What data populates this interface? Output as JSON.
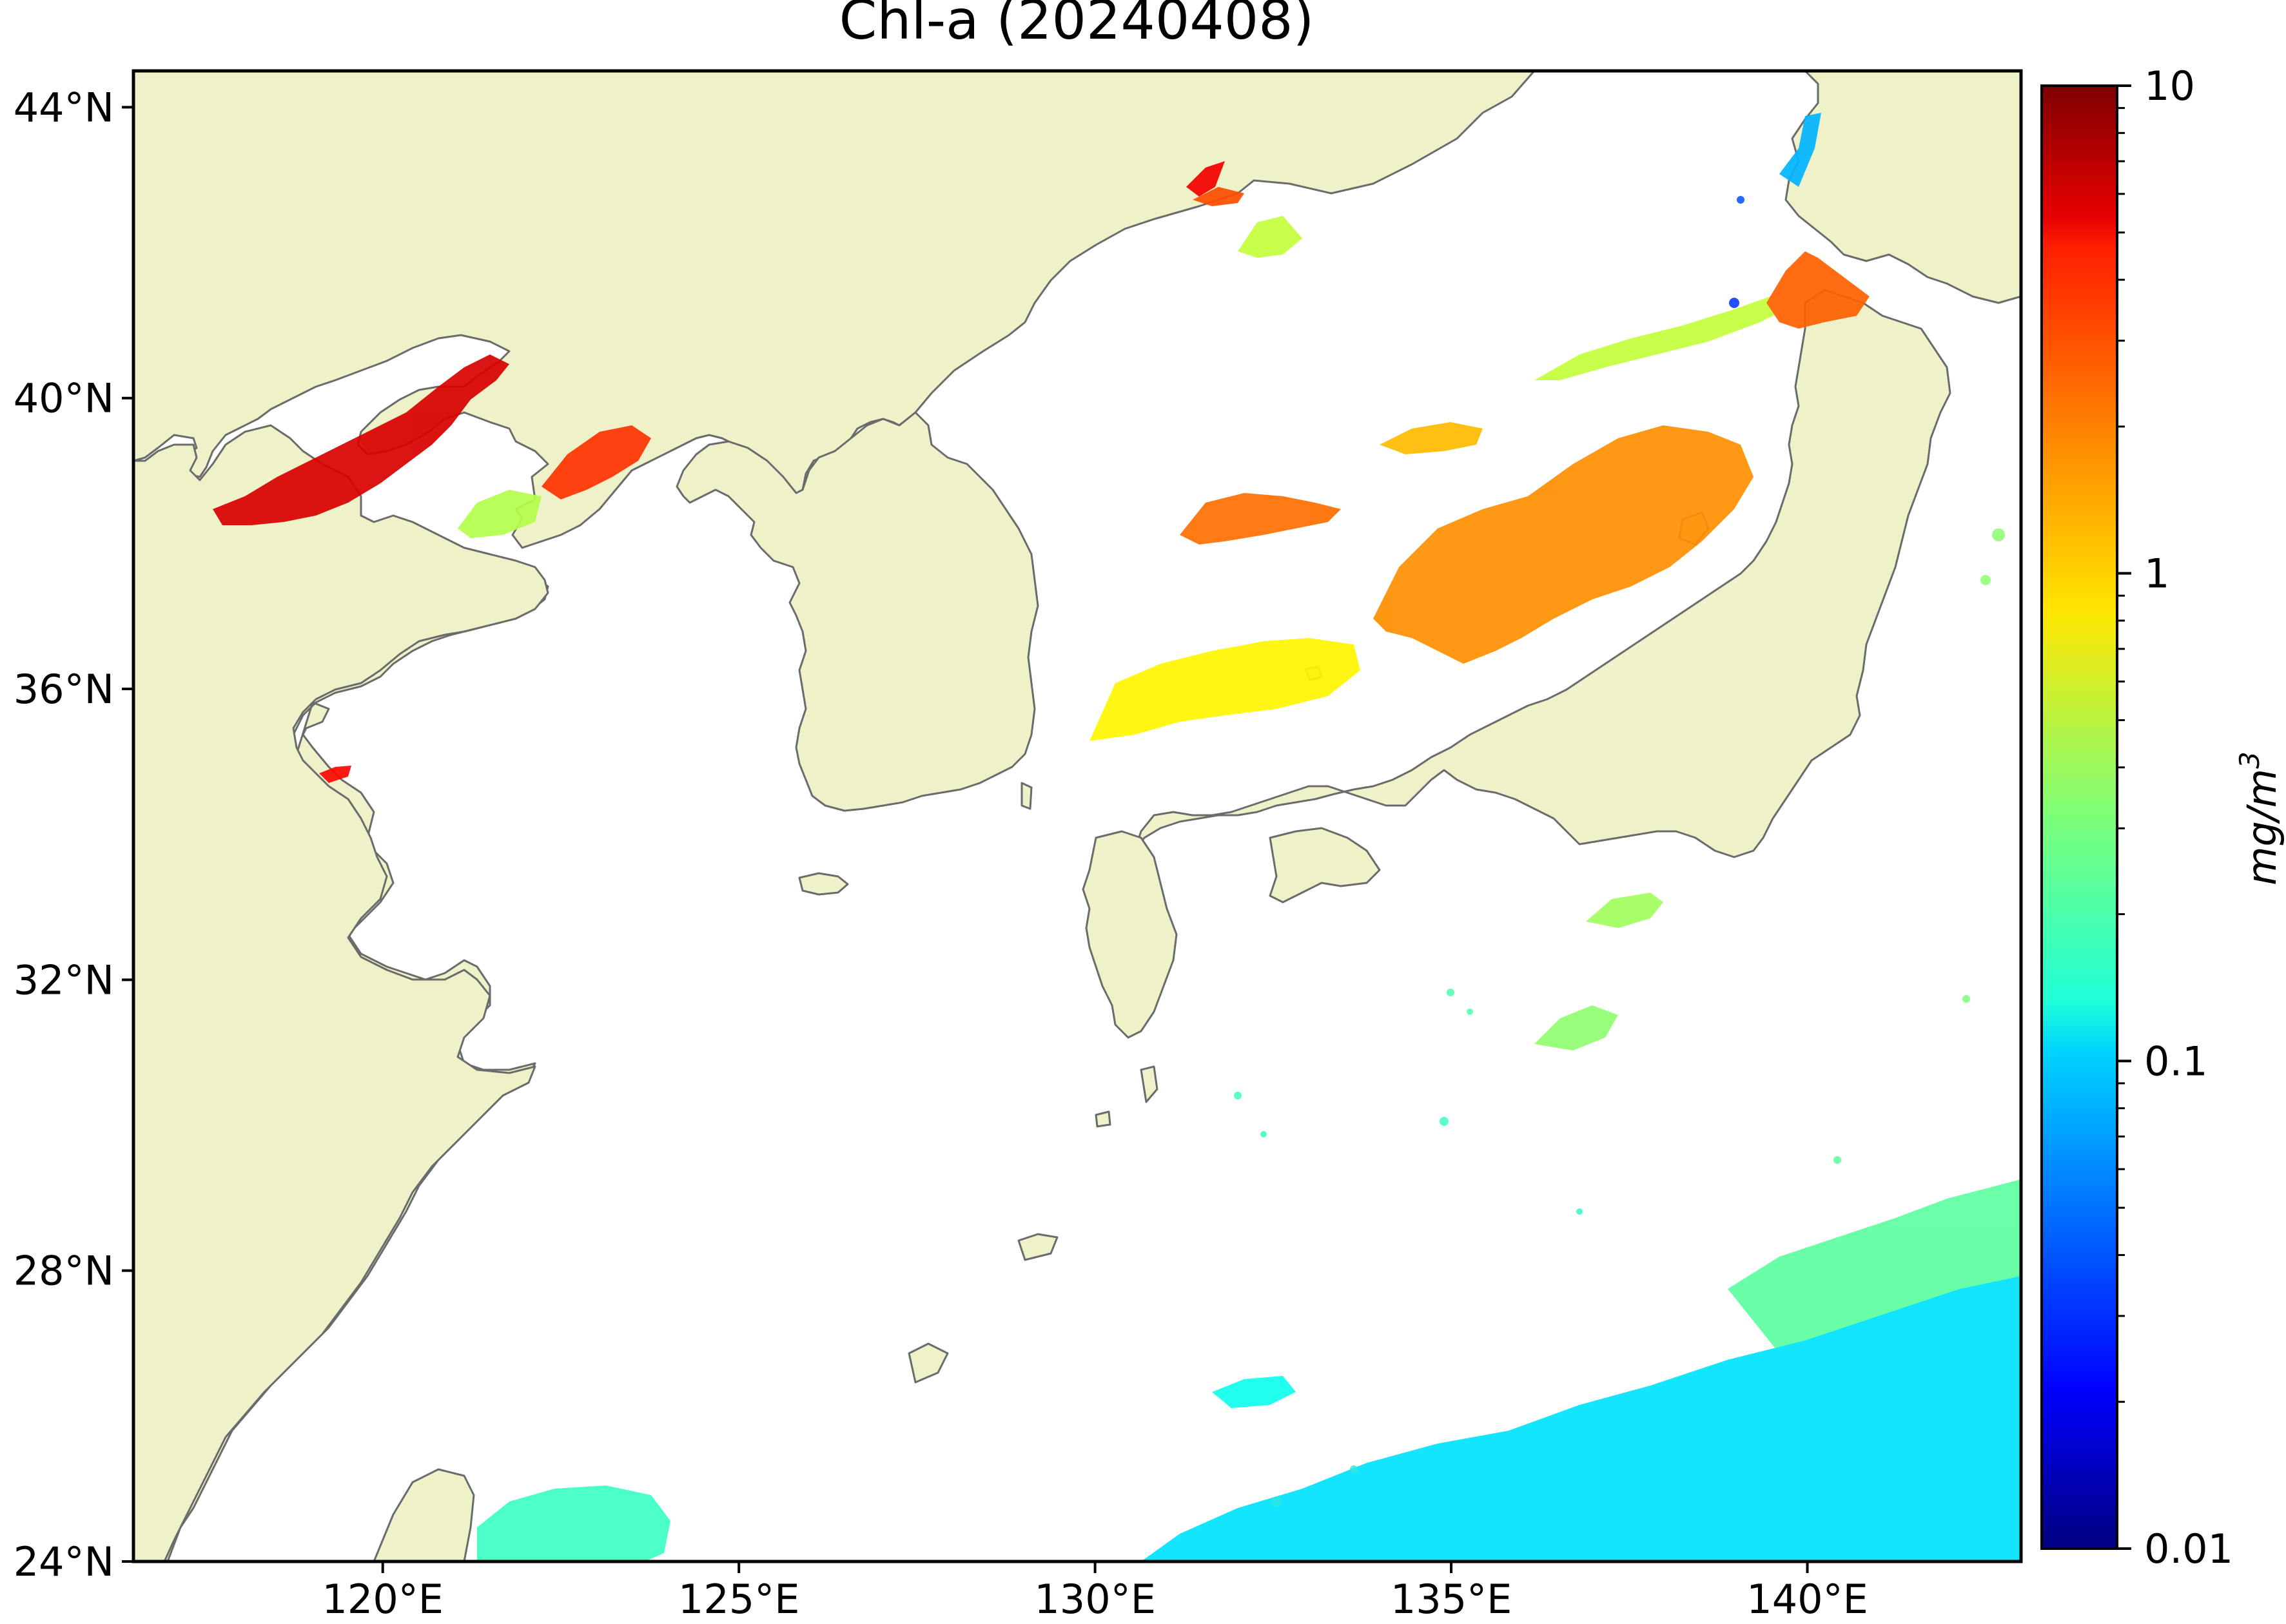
{
  "title": "Chl-a (20240408)",
  "map": {
    "lon_range": [
      116.5,
      143
    ],
    "lat_range": [
      24,
      44.5
    ],
    "land_color": "#eff2c9",
    "ocean_color": "#ffffff",
    "coastline_color": "#6b6b6b",
    "x_ticks": [
      {
        "lon": 120,
        "label": "120°E"
      },
      {
        "lon": 125,
        "label": "125°E"
      },
      {
        "lon": 130,
        "label": "130°E"
      },
      {
        "lon": 135,
        "label": "135°E"
      },
      {
        "lon": 140,
        "label": "140°E"
      }
    ],
    "y_ticks": [
      {
        "lat": 44,
        "label": "44°N"
      },
      {
        "lat": 40,
        "label": "40°N"
      },
      {
        "lat": 36,
        "label": "36°N"
      },
      {
        "lat": 32,
        "label": "32°N"
      },
      {
        "lat": 28,
        "label": "28°N"
      },
      {
        "lat": 24,
        "label": "24°N"
      }
    ]
  },
  "colorbar": {
    "label": "mg/m",
    "label_superscript": "3",
    "scale": "log",
    "range": [
      0.01,
      10
    ],
    "colormap": "jet",
    "ticks": [
      {
        "value": 10,
        "label": "10"
      },
      {
        "value": 1,
        "label": "1"
      },
      {
        "value": 0.1,
        "label": "0.1"
      },
      {
        "value": 0.01,
        "label": "0.01"
      }
    ]
  },
  "chl_patches": [
    {
      "name": "bohai-bay",
      "value": 5.5
    },
    {
      "name": "liaodong-bay-north",
      "value": 4.5
    },
    {
      "name": "korea-bay",
      "value": 3.0
    },
    {
      "name": "korea-bay-edge",
      "value": 0.45
    },
    {
      "name": "jiangsu-coast",
      "value": 4.0
    },
    {
      "name": "east-sea-north",
      "value": 0.5
    },
    {
      "name": "vladivostok-coast",
      "value": 2.5
    },
    {
      "name": "tsugaru-strait",
      "value": 2.2
    },
    {
      "name": "east-sea-northeast",
      "value": 0.5
    },
    {
      "name": "hokkaido-west",
      "value": 0.08
    },
    {
      "name": "east-sea-central",
      "value": 2.0
    },
    {
      "name": "yamato-basin",
      "value": 1.6
    },
    {
      "name": "east-sea-southwest",
      "value": 1.2
    },
    {
      "name": "east-sea-south",
      "value": 0.8
    },
    {
      "name": "japan-pacific-coast",
      "value": 0.4
    },
    {
      "name": "east-of-honshu",
      "value": 0.35
    },
    {
      "name": "philippine-sea-north",
      "value": 0.25
    },
    {
      "name": "philippine-sea-south",
      "value": 0.11
    },
    {
      "name": "taiwan-strait",
      "value": 0.2
    },
    {
      "name": "ryukyu-south",
      "value": 0.15
    }
  ]
}
